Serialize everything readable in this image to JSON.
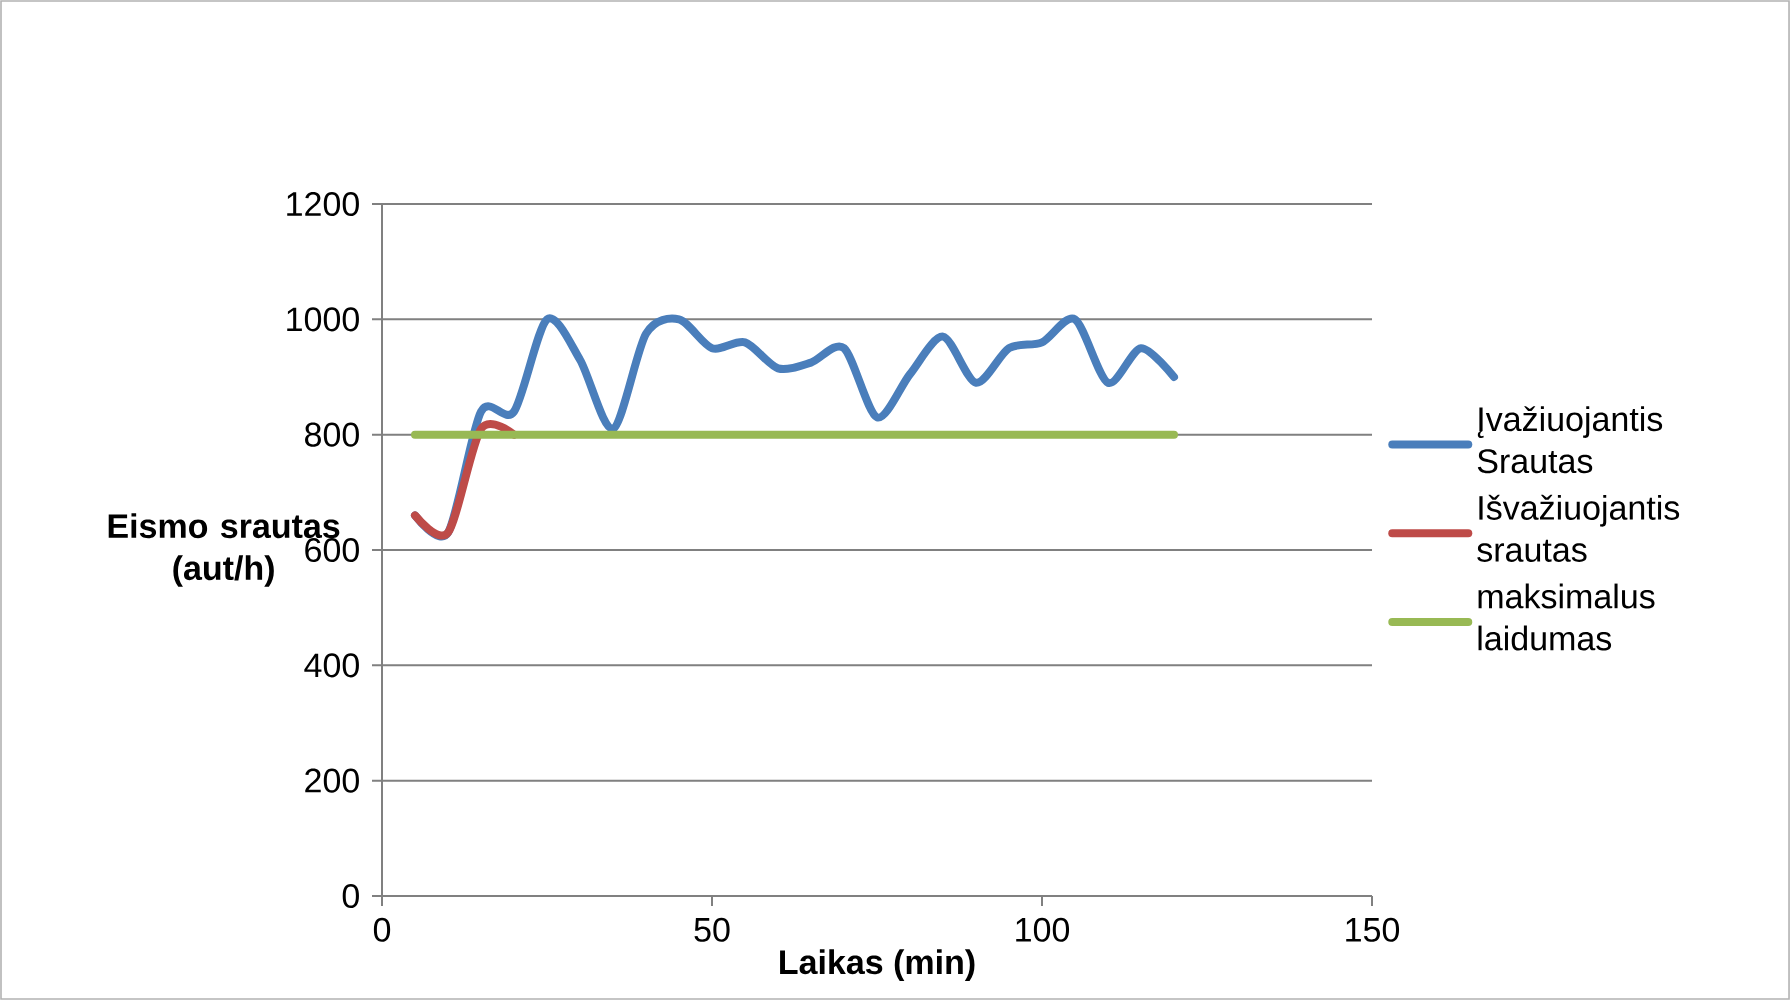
{
  "chart_data": {
    "type": "line",
    "xlabel": "Laikas (min)",
    "ylabel": "Eismo srautas (aut/h)",
    "x": [
      5,
      10,
      15,
      20,
      25,
      30,
      35,
      40,
      45,
      50,
      55,
      60,
      65,
      70,
      75,
      80,
      85,
      90,
      95,
      100,
      105,
      110,
      115,
      120
    ],
    "series": [
      {
        "name": "Įvažiuojantis Srautas",
        "color": "#4a7ebb",
        "values": [
          660,
          630,
          840,
          840,
          1000,
          930,
          810,
          975,
          1000,
          950,
          960,
          915,
          925,
          950,
          830,
          905,
          970,
          890,
          950,
          960,
          1000,
          890,
          950,
          900
        ]
      },
      {
        "name": "Išvažiuojantis srautas",
        "color": "#be4b48",
        "values": [
          660,
          630,
          810,
          800,
          null,
          null,
          null,
          null,
          null,
          null,
          null,
          null,
          null,
          null,
          null,
          null,
          null,
          null,
          null,
          null,
          null,
          null,
          null,
          null
        ]
      },
      {
        "name": "maksimalus laidumas",
        "color": "#98b954",
        "values": [
          800,
          800,
          800,
          800,
          800,
          800,
          800,
          800,
          800,
          800,
          800,
          800,
          800,
          800,
          800,
          800,
          800,
          800,
          800,
          800,
          800,
          800,
          800,
          800
        ]
      }
    ],
    "xlim": [
      0,
      150
    ],
    "xticks": [
      0,
      50,
      100,
      150
    ],
    "ylim": [
      0,
      1200
    ],
    "yticks": [
      0,
      200,
      400,
      600,
      800,
      1000,
      1200
    ],
    "grid": "y",
    "legend": "right",
    "marker": "none",
    "line_style": "solid"
  }
}
